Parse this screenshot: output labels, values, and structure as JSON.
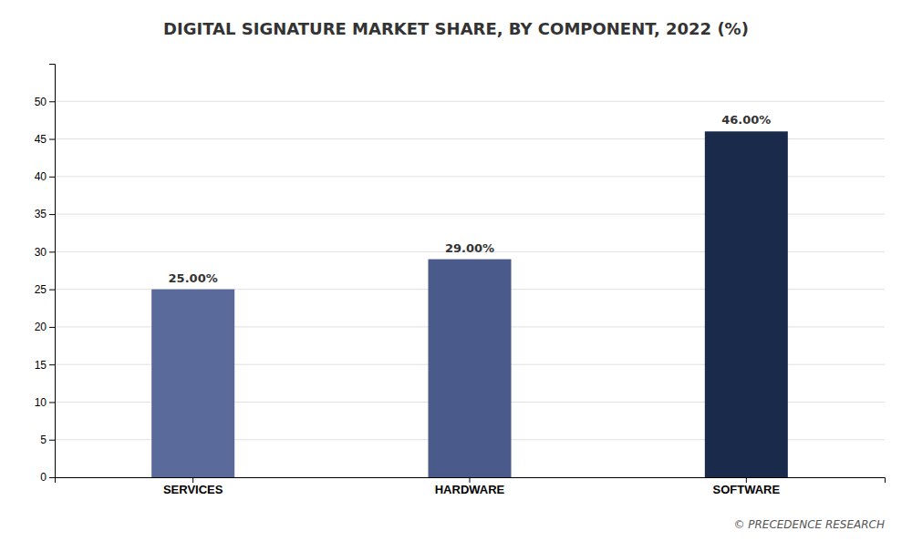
{
  "chart_data": {
    "type": "bar",
    "title": "DIGITAL SIGNATURE MARKET SHARE, BY COMPONENT, 2022 (%)",
    "categories": [
      "SERVICES",
      "HARDWARE",
      "SOFTWARE"
    ],
    "values": [
      25.0,
      29.0,
      46.0
    ],
    "value_labels": [
      "25.00%",
      "29.00%",
      "46.00%"
    ],
    "colors": [
      "#5a6a9a",
      "#4a5a8a",
      "#1a2a4a"
    ],
    "ylim": [
      0,
      55
    ],
    "yticks": [
      0,
      5,
      10,
      15,
      20,
      25,
      30,
      35,
      40,
      45,
      50
    ],
    "grid": true,
    "data_labels": true,
    "annotations": [
      "© PRECEDENCE RESEARCH"
    ]
  }
}
